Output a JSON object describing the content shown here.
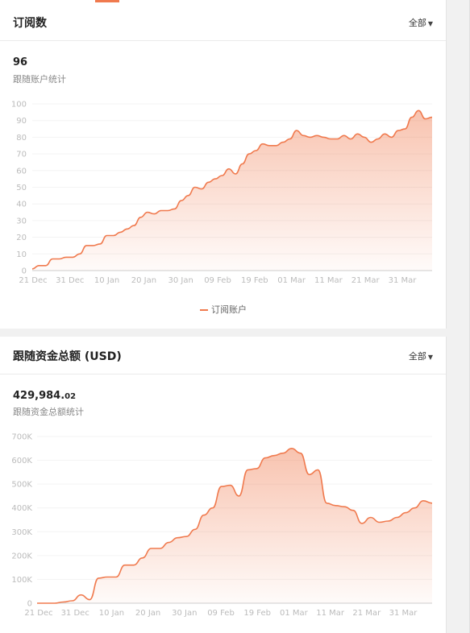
{
  "card1": {
    "title": "订阅数",
    "filter_label": "全部",
    "big_number": "96",
    "subtitle": "跟随账户统计",
    "legend": "订阅账户"
  },
  "card2": {
    "title": "跟随资金总额 (USD)",
    "filter_label": "全部",
    "big_number_int": "429,984.",
    "big_number_dec": "02",
    "subtitle": "跟随资金总额统计"
  },
  "chart_data": [
    {
      "type": "area",
      "x_labels": [
        "21 Dec",
        "31 Dec",
        "10 Jan",
        "20 Jan",
        "30 Jan",
        "09 Feb",
        "19 Feb",
        "01 Mar",
        "11 Mar",
        "21 Mar",
        "31 Mar"
      ],
      "y_ticks": [
        "0",
        "10",
        "20",
        "30",
        "40",
        "50",
        "60",
        "70",
        "80",
        "90",
        "100"
      ],
      "ylim": [
        0,
        100
      ],
      "grid": true,
      "color": "#f07a4e",
      "legend_position": "bottom-center",
      "series": [
        {
          "name": "订阅账户",
          "values": [
            1,
            3,
            3,
            7,
            7,
            8,
            8,
            10,
            15,
            15,
            16,
            21,
            21,
            23,
            25,
            27,
            32,
            35,
            34,
            36,
            36,
            37,
            42,
            45,
            50,
            49,
            53,
            55,
            57,
            61,
            58,
            64,
            70,
            72,
            76,
            75,
            75,
            77,
            79,
            84,
            81,
            80,
            81,
            80,
            79,
            79,
            81,
            79,
            82,
            80,
            77,
            79,
            82,
            80,
            84,
            85,
            92,
            96,
            91,
            92
          ]
        }
      ]
    },
    {
      "type": "area",
      "x_labels": [
        "21 Dec",
        "31 Dec",
        "10 Jan",
        "20 Jan",
        "30 Jan",
        "09 Feb",
        "19 Feb",
        "01 Mar",
        "11 Mar",
        "21 Mar",
        "31 Mar"
      ],
      "y_ticks": [
        "0",
        "100K",
        "200K",
        "300K",
        "400K",
        "500K",
        "600K",
        "700K"
      ],
      "ylim": [
        0,
        700000
      ],
      "grid": true,
      "color": "#f07a4e",
      "series": [
        {
          "name": "",
          "values": [
            0,
            0,
            0,
            5000,
            10000,
            35000,
            15000,
            105000,
            110000,
            110000,
            160000,
            160000,
            190000,
            230000,
            230000,
            255000,
            275000,
            280000,
            310000,
            370000,
            400000,
            490000,
            495000,
            450000,
            560000,
            565000,
            610000,
            620000,
            630000,
            650000,
            630000,
            540000,
            560000,
            420000,
            410000,
            405000,
            390000,
            335000,
            360000,
            340000,
            345000,
            360000,
            380000,
            400000,
            430000,
            420000
          ]
        }
      ]
    }
  ]
}
